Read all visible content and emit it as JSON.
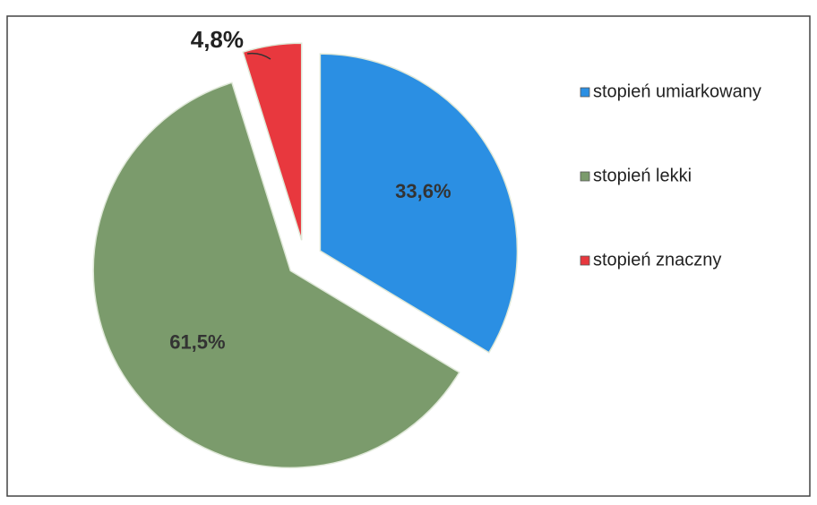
{
  "chart_data": {
    "type": "pie",
    "categories": [
      "stopień umiarkowany",
      "stopień lekki",
      "stopień znaczny"
    ],
    "values": [
      33.6,
      61.5,
      4.8
    ],
    "value_labels": [
      "33,6%",
      "61,5%",
      "4,8%"
    ],
    "colors": [
      "#2b8fe3",
      "#7b9b6c",
      "#e8383e"
    ],
    "legend": "right"
  }
}
